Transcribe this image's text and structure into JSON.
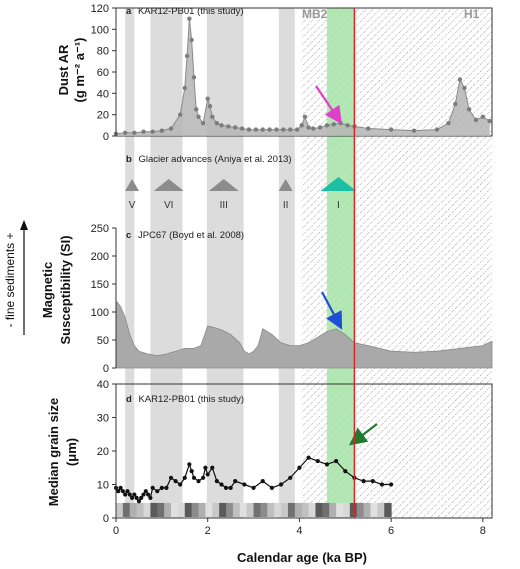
{
  "colors": {
    "grey_band": "#dcdcdc",
    "green_band": "#a6e3a6",
    "red_line": "#d62728",
    "dust_fill": "#b5b5b5",
    "dust_line": "#8a8a8a",
    "ms_fill": "#a9a9a9",
    "gs_line": "#111111",
    "glacier_tri": "#8c8c8c",
    "glacier_tri_I": "#1cbfa6",
    "arrow_magenta": "#e040c8",
    "arrow_blue": "#1f4fd6",
    "arrow_green": "#1f7a30"
  },
  "figure": {
    "x_axis_label": "Calendar age (ka BP)",
    "x_ticks": [
      "0",
      "2",
      "4",
      "6",
      "8"
    ],
    "side_label": "- fine sediments +",
    "zone_labels": {
      "mb2": "MB2",
      "h1": "H1"
    }
  },
  "chart_data": [
    {
      "type": "area",
      "panel": "a",
      "panel_title": "KAR12-PB01 (this study)",
      "ylabel_line1": "Dust AR",
      "ylabel_line2": "(g m⁻² a⁻¹)",
      "ylim": [
        0,
        120
      ],
      "xlim": [
        0,
        8.2
      ],
      "y_ticks": [
        "0",
        "20",
        "40",
        "60",
        "80",
        "100",
        "120"
      ],
      "x": [
        0,
        0.2,
        0.4,
        0.6,
        0.8,
        1.0,
        1.2,
        1.4,
        1.5,
        1.55,
        1.6,
        1.65,
        1.7,
        1.75,
        1.8,
        1.9,
        2.0,
        2.05,
        2.1,
        2.2,
        2.3,
        2.45,
        2.6,
        2.75,
        2.9,
        3.05,
        3.2,
        3.35,
        3.5,
        3.65,
        3.8,
        3.95,
        4.05,
        4.12,
        4.2,
        4.3,
        4.45,
        4.6,
        4.75,
        4.9,
        5.05,
        5.2,
        5.5,
        6.0,
        6.5,
        7.0,
        7.25,
        7.4,
        7.5,
        7.6,
        7.7,
        7.85,
        8.0,
        8.15
      ],
      "values": [
        2,
        3,
        3,
        4,
        4,
        5,
        7,
        20,
        45,
        75,
        110,
        90,
        55,
        25,
        18,
        12,
        35,
        28,
        18,
        12,
        10,
        9,
        8,
        7,
        6,
        6,
        6,
        6,
        6,
        6,
        6,
        6,
        10,
        18,
        8,
        7,
        8,
        10,
        11,
        12,
        10,
        9,
        7,
        6,
        5,
        6,
        12,
        30,
        53,
        45,
        25,
        15,
        18,
        14
      ]
    },
    {
      "type": "table",
      "panel": "b",
      "panel_title": "Glacier advances (Aniya et al. 2013)",
      "advances": [
        {
          "label": "V",
          "age": 0.35
        },
        {
          "label": "VI",
          "age": 1.15
        },
        {
          "label": "III",
          "age": 2.35
        },
        {
          "label": "II",
          "age": 3.7
        },
        {
          "label": "I",
          "age": 4.85
        }
      ]
    },
    {
      "type": "area",
      "panel": "c",
      "panel_title": "JPC67 (Boyd et al. 2008)",
      "ylabel_line1": "Magnetic",
      "ylabel_line2": "Susceptibility (SI)",
      "ylim": [
        0,
        250
      ],
      "xlim": [
        0,
        8.2
      ],
      "y_ticks": [
        "0",
        "50",
        "100",
        "150",
        "200",
        "250"
      ],
      "x": [
        0,
        0.1,
        0.2,
        0.3,
        0.4,
        0.5,
        0.7,
        0.9,
        1.1,
        1.3,
        1.5,
        1.7,
        1.85,
        2.0,
        2.15,
        2.3,
        2.5,
        2.7,
        2.8,
        2.9,
        3.0,
        3.1,
        3.2,
        3.4,
        3.6,
        3.8,
        4.0,
        4.2,
        4.4,
        4.6,
        4.8,
        5.0,
        5.2,
        5.5,
        6.0,
        6.5,
        7.0,
        7.5,
        8.0,
        8.2
      ],
      "values": [
        120,
        110,
        90,
        60,
        40,
        30,
        25,
        22,
        25,
        30,
        35,
        35,
        40,
        75,
        72,
        68,
        60,
        45,
        30,
        25,
        30,
        40,
        70,
        60,
        45,
        40,
        40,
        45,
        55,
        65,
        70,
        60,
        45,
        40,
        30,
        28,
        30,
        35,
        40,
        48
      ]
    },
    {
      "type": "line",
      "panel": "d",
      "panel_title": "KAR12-PB01 (this study)",
      "ylabel_line1": "Median grain size",
      "ylabel_line2": "(μm)",
      "ylim": [
        0,
        40
      ],
      "xlim": [
        0,
        8.2
      ],
      "y_ticks": [
        "0",
        "10",
        "20",
        "30",
        "40"
      ],
      "x": [
        0,
        0.05,
        0.1,
        0.15,
        0.2,
        0.25,
        0.3,
        0.35,
        0.4,
        0.45,
        0.5,
        0.55,
        0.6,
        0.65,
        0.7,
        0.75,
        0.8,
        0.9,
        1.0,
        1.1,
        1.2,
        1.3,
        1.4,
        1.5,
        1.6,
        1.65,
        1.7,
        1.8,
        1.9,
        1.95,
        2.0,
        2.1,
        2.2,
        2.3,
        2.4,
        2.5,
        2.6,
        2.8,
        3.0,
        3.2,
        3.4,
        3.6,
        3.8,
        4.0,
        4.2,
        4.4,
        4.6,
        4.8,
        5.0,
        5.2,
        5.4,
        5.6,
        5.8,
        6.0
      ],
      "values": [
        9,
        8,
        9,
        8,
        7,
        8,
        7,
        6,
        7,
        6,
        5,
        6,
        7,
        8,
        7,
        6,
        9,
        8,
        9,
        9,
        12,
        11,
        10,
        12,
        16,
        14,
        12,
        11,
        12,
        15,
        13,
        15,
        11,
        10,
        9,
        9,
        11,
        10,
        9,
        11,
        9,
        10,
        12,
        15,
        18,
        17,
        16,
        17,
        14,
        12,
        11,
        11,
        10,
        10
      ]
    }
  ]
}
